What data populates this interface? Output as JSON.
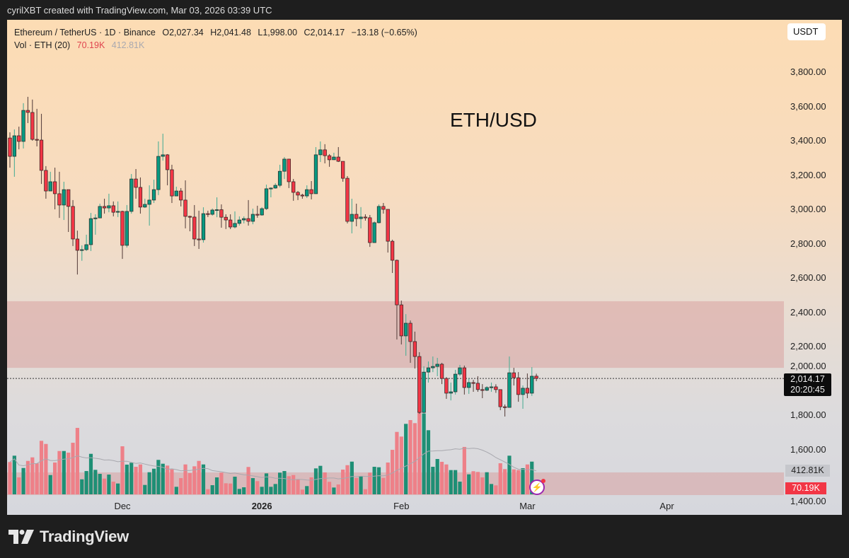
{
  "credit": "cyrilXBT created with TradingView.com, Mar 03, 2026 03:39 UTC",
  "legend": {
    "symbol": "Ethereum / TetherUS · 1D · Binance",
    "open": "O2,027.34",
    "high": "H2,041.48",
    "low": "L1,998.00",
    "close": "C2,014.17",
    "change": "−13.18 (−0.65%)",
    "volume_label": "Vol · ETH (20)",
    "volume_value": "70.19K",
    "volume_ma": "412.81K"
  },
  "currency_button": "USDT",
  "annotation": "ETH/USD",
  "last_price": {
    "price": "2,014.17",
    "countdown": "20:20:45"
  },
  "volume_ma_label": "412.81K",
  "volume_label": "70.19K",
  "brand": "TradingView",
  "colors": {
    "up": "#089981",
    "down": "#f23645",
    "zone": "#d9a3a0",
    "volume_up": "#1e8f75",
    "volume_down": "#ee8088"
  },
  "icons": {
    "alert": "lightning-bolt-icon",
    "logo": "tradingview-logo-icon"
  },
  "chart_data": {
    "type": "candlestick",
    "title": "",
    "ylim": [
      1330,
      3900
    ],
    "y_ticks": [
      "3,800.00",
      "3,600.00",
      "3,400.00",
      "3,200.00",
      "3,000.00",
      "2,800.00",
      "2,600.00",
      "2,400.00",
      "2,200.00",
      "2,000.00",
      "1,800.00",
      "1,600.00",
      "1,400.00"
    ],
    "y_tick_values": [
      3800,
      3600,
      3400,
      3200,
      3000,
      2800,
      2600,
      2400,
      2200,
      2000,
      1800,
      1600,
      1400
    ],
    "x_ticks": [
      {
        "label": "Dec",
        "date": "2025-12-01",
        "bold": false
      },
      {
        "label": "2026",
        "date": "2026-01-01",
        "bold": true
      },
      {
        "label": "Feb",
        "date": "2026-02-01",
        "bold": false
      },
      {
        "label": "Mar",
        "date": "2026-03-01",
        "bold": false
      },
      {
        "label": "Apr",
        "date": "2026-04-01",
        "bold": false
      }
    ],
    "grid": false,
    "current_price": 2014.17,
    "zones": [
      {
        "from": 2076,
        "to": 2464
      },
      {
        "from": 1334,
        "to": 1466
      }
    ],
    "volume_unit": "K",
    "volume_ma_period": 20,
    "candles_columns": [
      "date",
      "open",
      "high",
      "low",
      "close",
      "volume_k"
    ],
    "candles": [
      [
        "2025-11-06",
        3416,
        3449,
        3243,
        3309,
        539
      ],
      [
        "2025-11-07",
        3309,
        3466,
        3190,
        3429,
        645
      ],
      [
        "2025-11-08",
        3429,
        3482,
        3350,
        3396,
        283
      ],
      [
        "2025-11-09",
        3396,
        3619,
        3355,
        3577,
        440
      ],
      [
        "2025-11-10",
        3577,
        3656,
        3503,
        3565,
        558
      ],
      [
        "2025-11-11",
        3565,
        3640,
        3400,
        3408,
        617
      ],
      [
        "2025-11-12",
        3408,
        3586,
        3367,
        3404,
        519
      ],
      [
        "2025-11-13",
        3404,
        3557,
        3148,
        3227,
        893
      ],
      [
        "2025-11-14",
        3227,
        3252,
        3062,
        3107,
        841
      ],
      [
        "2025-11-15",
        3107,
        3219,
        3107,
        3161,
        322
      ],
      [
        "2025-11-16",
        3161,
        3243,
        3000,
        3091,
        531
      ],
      [
        "2025-11-17",
        3091,
        3219,
        2950,
        3025,
        723
      ],
      [
        "2025-11-18",
        3025,
        3161,
        2938,
        3115,
        723
      ],
      [
        "2025-11-19",
        3115,
        3115,
        2868,
        3017,
        696
      ],
      [
        "2025-11-20",
        3017,
        3054,
        2786,
        2827,
        861
      ],
      [
        "2025-11-21",
        2827,
        2876,
        2620,
        2761,
        1109
      ],
      [
        "2025-11-22",
        2761,
        2790,
        2700,
        2765,
        251
      ],
      [
        "2025-11-23",
        2765,
        2852,
        2757,
        2794,
        389
      ],
      [
        "2025-11-24",
        2794,
        2979,
        2757,
        2946,
        676
      ],
      [
        "2025-11-25",
        2946,
        2971,
        2852,
        2950,
        409
      ],
      [
        "2025-11-26",
        2950,
        3033,
        2950,
        3017,
        342
      ],
      [
        "2025-11-27",
        3017,
        3062,
        2975,
        3008,
        263
      ],
      [
        "2025-11-28",
        3008,
        3091,
        2983,
        3021,
        330
      ],
      [
        "2025-11-29",
        3021,
        3046,
        2959,
        2983,
        212
      ],
      [
        "2025-11-30",
        2983,
        3046,
        2955,
        2988,
        181
      ],
      [
        "2025-12-01",
        2988,
        2992,
        2711,
        2790,
        802
      ],
      [
        "2025-12-02",
        2790,
        3025,
        2777,
        2988,
        496
      ],
      [
        "2025-12-03",
        2988,
        3206,
        2975,
        3177,
        527
      ],
      [
        "2025-12-04",
        3177,
        3235,
        3062,
        3128,
        460
      ],
      [
        "2025-12-05",
        3128,
        3186,
        2975,
        3013,
        499
      ],
      [
        "2025-12-06",
        3013,
        3062,
        3008,
        3029,
        157
      ],
      [
        "2025-12-07",
        3029,
        3140,
        2905,
        3054,
        369
      ],
      [
        "2025-12-08",
        3054,
        3173,
        3037,
        3115,
        428
      ],
      [
        "2025-12-09",
        3115,
        3396,
        3083,
        3309,
        575
      ],
      [
        "2025-12-10",
        3309,
        3441,
        3284,
        3318,
        511
      ],
      [
        "2025-12-11",
        3318,
        3322,
        3140,
        3231,
        480
      ],
      [
        "2025-12-12",
        3231,
        3260,
        3037,
        3078,
        417
      ],
      [
        "2025-12-13",
        3078,
        3132,
        3078,
        3107,
        126
      ],
      [
        "2025-12-14",
        3107,
        3124,
        3017,
        3054,
        271
      ],
      [
        "2025-12-15",
        3054,
        3169,
        2889,
        2959,
        499
      ],
      [
        "2025-12-16",
        2959,
        2963,
        2872,
        2955,
        354
      ],
      [
        "2025-12-17",
        2955,
        3025,
        2786,
        2827,
        468
      ],
      [
        "2025-12-18",
        2827,
        2992,
        2769,
        2823,
        558
      ],
      [
        "2025-12-19",
        2823,
        3012,
        2806,
        2975,
        499
      ],
      [
        "2025-12-20",
        2975,
        2992,
        2955,
        2971,
        86
      ],
      [
        "2025-12-21",
        2971,
        3005,
        2963,
        2996,
        153
      ],
      [
        "2025-12-22",
        2996,
        3070,
        2954,
        2998,
        283
      ],
      [
        "2025-12-23",
        2998,
        3029,
        2893,
        2954,
        362
      ],
      [
        "2025-12-24",
        2954,
        2971,
        2885,
        2938,
        185
      ],
      [
        "2025-12-25",
        2938,
        2971,
        2885,
        2897,
        181
      ],
      [
        "2025-12-26",
        2897,
        2988,
        2889,
        2918,
        295
      ],
      [
        "2025-12-27",
        2918,
        2959,
        2905,
        2938,
        91
      ],
      [
        "2025-12-28",
        2938,
        2959,
        2918,
        2946,
        118
      ],
      [
        "2025-12-29",
        2946,
        3054,
        2905,
        2930,
        457
      ],
      [
        "2025-12-30",
        2930,
        3004,
        2913,
        2971,
        271
      ],
      [
        "2025-12-31",
        2971,
        3021,
        2951,
        2967,
        221
      ],
      [
        "2026-01-01",
        2967,
        3013,
        2963,
        3004,
        126
      ],
      [
        "2026-01-02",
        3004,
        3144,
        2996,
        3120,
        350
      ],
      [
        "2026-01-03",
        3120,
        3128,
        3070,
        3124,
        126
      ],
      [
        "2026-01-04",
        3124,
        3152,
        3120,
        3140,
        173
      ],
      [
        "2026-01-05",
        3140,
        3260,
        3128,
        3222,
        362
      ],
      [
        "2026-01-06",
        3222,
        3305,
        3177,
        3293,
        389
      ],
      [
        "2026-01-07",
        3293,
        3293,
        3124,
        3161,
        303
      ],
      [
        "2026-01-08",
        3161,
        3177,
        3050,
        3099,
        322
      ],
      [
        "2026-01-09",
        3099,
        3107,
        3054,
        3083,
        251
      ],
      [
        "2026-01-10",
        3083,
        3091,
        3062,
        3078,
        79
      ],
      [
        "2026-01-11",
        3078,
        3140,
        3066,
        3115,
        138
      ],
      [
        "2026-01-12",
        3115,
        3165,
        3058,
        3091,
        283
      ],
      [
        "2026-01-13",
        3091,
        3363,
        3091,
        3318,
        433
      ],
      [
        "2026-01-14",
        3318,
        3396,
        3276,
        3347,
        476
      ],
      [
        "2026-01-15",
        3347,
        3380,
        3268,
        3313,
        366
      ],
      [
        "2026-01-16",
        3313,
        3322,
        3248,
        3289,
        209
      ],
      [
        "2026-01-17",
        3289,
        3330,
        3289,
        3305,
        114
      ],
      [
        "2026-01-18",
        3305,
        3363,
        3276,
        3280,
        165
      ],
      [
        "2026-01-19",
        3280,
        3280,
        3161,
        3181,
        413
      ],
      [
        "2026-01-20",
        3181,
        3194,
        2918,
        2930,
        487
      ],
      [
        "2026-01-21",
        2930,
        3062,
        2860,
        2971,
        546
      ],
      [
        "2026-01-22",
        2971,
        3033,
        2901,
        2946,
        275
      ],
      [
        "2026-01-23",
        2946,
        3013,
        2889,
        2955,
        303
      ],
      [
        "2026-01-24",
        2955,
        2971,
        2934,
        2951,
        86
      ],
      [
        "2026-01-25",
        2951,
        2967,
        2781,
        2806,
        362
      ],
      [
        "2026-01-26",
        2806,
        2930,
        2806,
        2922,
        460
      ],
      [
        "2026-01-27",
        2922,
        3029,
        2918,
        3017,
        452
      ],
      [
        "2026-01-28",
        3017,
        3037,
        2975,
        3000,
        275
      ],
      [
        "2026-01-29",
        3000,
        3000,
        2748,
        2814,
        531
      ],
      [
        "2026-01-30",
        2814,
        2823,
        2629,
        2703,
        743
      ],
      [
        "2026-01-31",
        2703,
        2707,
        2241,
        2443,
        1042
      ],
      [
        "2026-02-01",
        2443,
        2468,
        2212,
        2262,
        964
      ],
      [
        "2026-02-02",
        2262,
        2389,
        2146,
        2336,
        1176
      ],
      [
        "2026-02-03",
        2336,
        2352,
        2105,
        2229,
        1239
      ],
      [
        "2026-02-04",
        2229,
        2287,
        2072,
        2142,
        1188
      ],
      [
        "2026-02-05",
        2142,
        2167,
        1808,
        1816,
        1450
      ],
      [
        "2026-02-06",
        1816,
        2085,
        1808,
        2051,
        1350
      ],
      [
        "2026-02-07",
        2051,
        2113,
        1990,
        2076,
        1070
      ],
      [
        "2026-02-08",
        2076,
        2142,
        2051,
        2084,
        460
      ],
      [
        "2026-02-09",
        2084,
        2134,
        2027,
        2097,
        590
      ],
      [
        "2026-02-10",
        2097,
        2105,
        1981,
        2014,
        543
      ],
      [
        "2026-02-11",
        2014,
        2022,
        1895,
        1928,
        499
      ],
      [
        "2026-02-12",
        1928,
        1990,
        1886,
        1936,
        405
      ],
      [
        "2026-02-13",
        1936,
        2064,
        1920,
        2039,
        405
      ],
      [
        "2026-02-14",
        2039,
        2093,
        2027,
        2076,
        212
      ],
      [
        "2026-02-15",
        2076,
        2089,
        1920,
        1961,
        791
      ],
      [
        "2026-02-16",
        1961,
        2014,
        1924,
        1990,
        334
      ],
      [
        "2026-02-17",
        1990,
        2006,
        1936,
        1986,
        386
      ],
      [
        "2026-02-18",
        1986,
        2027,
        1936,
        1949,
        374
      ],
      [
        "2026-02-19",
        1949,
        1981,
        1899,
        1945,
        283
      ],
      [
        "2026-02-20",
        1945,
        1969,
        1940,
        1961,
        369
      ],
      [
        "2026-02-21",
        1961,
        1990,
        1936,
        1965,
        173
      ],
      [
        "2026-02-22",
        1965,
        1980,
        1930,
        1949,
        150
      ],
      [
        "2026-02-23",
        1949,
        1950,
        1829,
        1849,
        519
      ],
      [
        "2026-02-24",
        1849,
        1862,
        1792,
        1845,
        421
      ],
      [
        "2026-02-25",
        1845,
        2142,
        1845,
        2047,
        645
      ],
      [
        "2026-02-26",
        2047,
        2076,
        1973,
        2018,
        417
      ],
      [
        "2026-02-27",
        2018,
        2051,
        1878,
        1920,
        405
      ],
      [
        "2026-02-28",
        1920,
        1973,
        1837,
        1957,
        437
      ],
      [
        "2026-03-01",
        1957,
        2043,
        1899,
        1928,
        499
      ],
      [
        "2026-03-02",
        1928,
        2080,
        1912,
        2027,
        546
      ],
      [
        "2026-03-03",
        2027.34,
        2041.48,
        1998.0,
        2014.17,
        70.19
      ]
    ]
  }
}
